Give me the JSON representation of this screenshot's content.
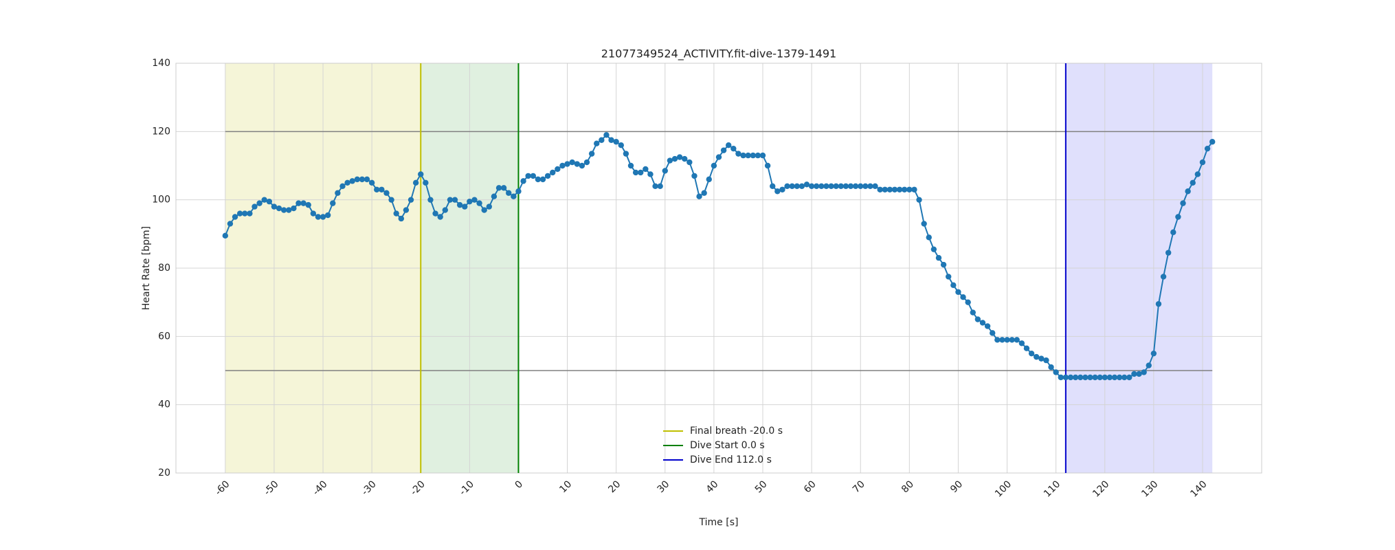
{
  "chart_data": {
    "type": "line",
    "title": "21077349524_ACTIVITY.fit-dive-1379-1491",
    "xlabel": "Time [s]",
    "ylabel": "Heart Rate [bpm]",
    "color": "#1f77b4",
    "x": [
      -60,
      -59,
      -58,
      -57,
      -56,
      -55,
      -54,
      -53,
      -52,
      -51,
      -50,
      -49,
      -48,
      -47,
      -46,
      -45,
      -44,
      -43,
      -42,
      -41,
      -40,
      -39,
      -38,
      -37,
      -36,
      -35,
      -34,
      -33,
      -32,
      -31,
      -30,
      -29,
      -28,
      -27,
      -26,
      -25,
      -24,
      -23,
      -22,
      -21,
      -20,
      -19,
      -18,
      -17,
      -16,
      -15,
      -14,
      -13,
      -12,
      -11,
      -10,
      -9,
      -8,
      -7,
      -6,
      -5,
      -4,
      -3,
      -2,
      -1,
      0,
      1,
      2,
      3,
      4,
      5,
      6,
      7,
      8,
      9,
      10,
      11,
      12,
      13,
      14,
      15,
      16,
      17,
      18,
      19,
      20,
      21,
      22,
      23,
      24,
      25,
      26,
      27,
      28,
      29,
      30,
      31,
      32,
      33,
      34,
      35,
      36,
      37,
      38,
      39,
      40,
      41,
      42,
      43,
      44,
      45,
      46,
      47,
      48,
      49,
      50,
      51,
      52,
      53,
      54,
      55,
      56,
      57,
      58,
      59,
      60,
      61,
      62,
      63,
      64,
      65,
      66,
      67,
      68,
      69,
      70,
      71,
      72,
      73,
      74,
      75,
      76,
      77,
      78,
      79,
      80,
      81,
      82,
      83,
      84,
      85,
      86,
      87,
      88,
      89,
      90,
      91,
      92,
      93,
      94,
      95,
      96,
      97,
      98,
      99,
      100,
      101,
      102,
      103,
      104,
      105,
      106,
      107,
      108,
      109,
      110,
      111,
      112,
      113,
      114,
      115,
      116,
      117,
      118,
      119,
      120,
      121,
      122,
      123,
      124,
      125,
      126,
      127,
      128,
      129,
      130,
      131,
      132,
      133,
      134,
      135,
      136,
      137,
      138,
      139,
      140,
      141,
      142
    ],
    "values": [
      89.5,
      93,
      95,
      96,
      96,
      96,
      98,
      99,
      100,
      99.5,
      98,
      97.5,
      97,
      97,
      97.5,
      99,
      99,
      98.5,
      96,
      95,
      95,
      95.5,
      99,
      102,
      104,
      105,
      105.5,
      106,
      106,
      106,
      105,
      103,
      103,
      102,
      100,
      96,
      94.5,
      97,
      100,
      105,
      107.5,
      105,
      100,
      96,
      95,
      97,
      100,
      100,
      98.5,
      98,
      99.5,
      100,
      99,
      97,
      98,
      101,
      103.5,
      103.5,
      102,
      101,
      102.5,
      105.5,
      107,
      107,
      106,
      106,
      107,
      108,
      109,
      110,
      110.5,
      111,
      110.5,
      110,
      111,
      113.5,
      116.5,
      117.5,
      119,
      117.5,
      117,
      116,
      113.5,
      110,
      108,
      108,
      109,
      107.5,
      104,
      104,
      108.5,
      111.5,
      112,
      112.5,
      112,
      111,
      107,
      101,
      102,
      106,
      110,
      112.5,
      114.5,
      116,
      115,
      113.5,
      113,
      113,
      113,
      113,
      113,
      110,
      104,
      102.5,
      103,
      104,
      104,
      104,
      104,
      104.5,
      104,
      104,
      104,
      104,
      104,
      104,
      104,
      104,
      104,
      104,
      104,
      104,
      104,
      104,
      103,
      103,
      103,
      103,
      103,
      103,
      103,
      103,
      100,
      93,
      89,
      85.5,
      83,
      81,
      77.5,
      75,
      73,
      71.5,
      70,
      67,
      65,
      64,
      63,
      61,
      59,
      59,
      59,
      59,
      59,
      58,
      56.5,
      55,
      54,
      53.5,
      53,
      51,
      49.5,
      48,
      48,
      48,
      48,
      48,
      48,
      48,
      48,
      48,
      48,
      48,
      48,
      48,
      48,
      48,
      49,
      49,
      49.5,
      51.5,
      55,
      69.5,
      77.5,
      84.5,
      90.5,
      95,
      99,
      102.5,
      105,
      107.5,
      111,
      115,
      117
    ],
    "xlim": [
      -70.1,
      152.1
    ],
    "ylim": [
      20,
      140
    ],
    "xticks": [
      -60,
      -50,
      -40,
      -30,
      -20,
      -10,
      0,
      10,
      20,
      30,
      40,
      50,
      60,
      70,
      80,
      90,
      100,
      110,
      120,
      130,
      140
    ],
    "yticks": [
      20,
      40,
      60,
      80,
      100,
      120,
      140
    ],
    "grid": true,
    "hlines": [
      {
        "y": 120,
        "color": "#808080"
      },
      {
        "y": 50,
        "color": "#808080"
      }
    ],
    "spans": [
      {
        "from": -60,
        "to": -20,
        "color": "#f5f5d8"
      },
      {
        "from": -20,
        "to": 0,
        "color": "#e0f0e0"
      },
      {
        "from": 112,
        "to": 142,
        "color": "#e0e0fc"
      }
    ],
    "vlines": [
      {
        "x": -20,
        "label": "Final breath -20.0 s",
        "color": "#bfbf00"
      },
      {
        "x": 0,
        "label": "Dive Start 0.0 s",
        "color": "#008000"
      },
      {
        "x": 112,
        "label": "Dive End 112.0 s",
        "color": "#0000cc"
      }
    ],
    "legend": "lower center"
  }
}
